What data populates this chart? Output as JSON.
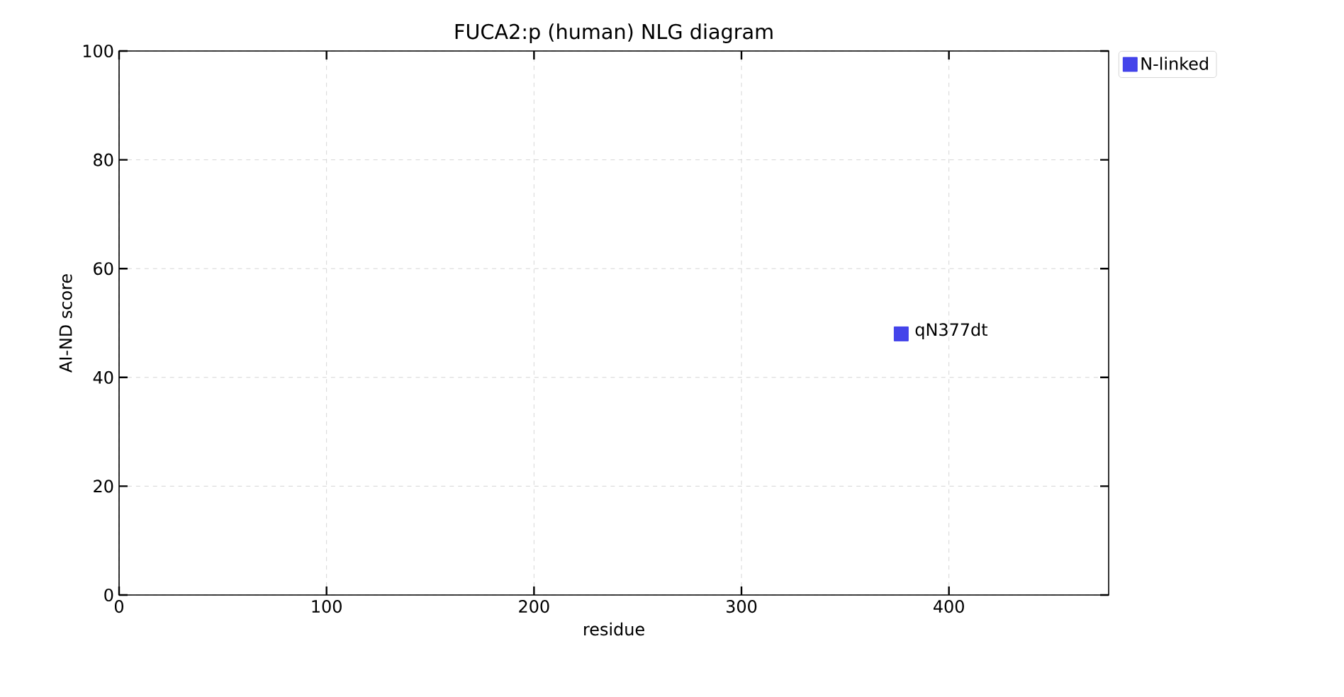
{
  "chart_data": {
    "type": "scatter",
    "title": "FUCA2:p (human) NLG diagram",
    "xlabel": "residue",
    "ylabel": "AI-ND score",
    "series": [
      {
        "name": "N-linked",
        "color": "#2323e6",
        "x": [
          377
        ],
        "values": [
          48
        ]
      }
    ],
    "annotations": [
      {
        "text": "qN377dt",
        "x": 377,
        "y": 48
      }
    ],
    "xlim": [
      0,
      477
    ],
    "ylim": [
      0,
      100
    ],
    "xticks": [
      0,
      100,
      200,
      300,
      400
    ],
    "yticks": [
      0,
      20,
      40,
      60,
      80,
      100
    ],
    "grid": true,
    "legend": "top right",
    "marker": "square"
  }
}
